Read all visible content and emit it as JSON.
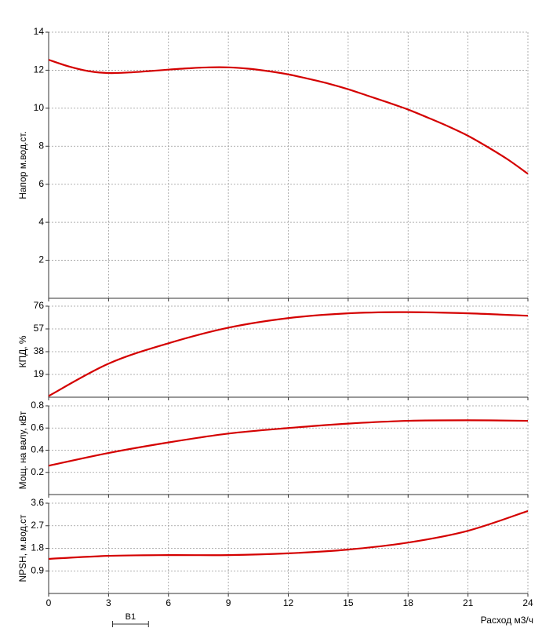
{
  "chart_data": [
    {
      "type": "line",
      "y_label": "Напор м.вод.ст.",
      "x": [
        0,
        1,
        2,
        3,
        4,
        5,
        6,
        7,
        8,
        9,
        10,
        11,
        12,
        13,
        14,
        15,
        16,
        17,
        18,
        19,
        20,
        21,
        22,
        23,
        24
      ],
      "series": [
        {
          "color": "#d40000",
          "values": [
            12.55,
            12.2,
            11.95,
            11.85,
            11.88,
            11.95,
            12.03,
            12.1,
            12.15,
            12.15,
            12.08,
            11.95,
            11.78,
            11.55,
            11.3,
            11.0,
            10.65,
            10.3,
            9.93,
            9.5,
            9.05,
            8.55,
            7.95,
            7.3,
            6.55
          ]
        }
      ],
      "xlim": [
        0,
        24
      ],
      "xticks": [
        0,
        3,
        6,
        9,
        12,
        15,
        18,
        21,
        24
      ],
      "ylim": [
        0,
        14
      ],
      "yticks": [
        2,
        4,
        6,
        8,
        10,
        12,
        14
      ],
      "grid": true
    },
    {
      "type": "line",
      "y_label": "КПД, %",
      "x": [
        0,
        3,
        6,
        9,
        12,
        15,
        18,
        21,
        24
      ],
      "series": [
        {
          "color": "#d40000",
          "values": [
            1,
            28,
            45,
            58,
            66,
            70,
            71,
            70,
            68
          ]
        }
      ],
      "xlim": [
        0,
        24
      ],
      "xticks": [
        0,
        3,
        6,
        9,
        12,
        15,
        18,
        21,
        24
      ],
      "ylim": [
        0,
        76
      ],
      "yticks": [
        19,
        38,
        57,
        76
      ],
      "grid": true
    },
    {
      "type": "line",
      "y_label": "Мощ. на валу, кВт",
      "x": [
        0,
        3,
        6,
        9,
        12,
        15,
        18,
        21,
        24
      ],
      "series": [
        {
          "color": "#d40000",
          "values": [
            0.26,
            0.375,
            0.47,
            0.55,
            0.6,
            0.64,
            0.665,
            0.67,
            0.665
          ]
        }
      ],
      "xlim": [
        0,
        24
      ],
      "xticks": [
        0,
        3,
        6,
        9,
        12,
        15,
        18,
        21,
        24
      ],
      "ylim": [
        0,
        0.8
      ],
      "yticks": [
        0.2,
        0.4,
        0.6,
        0.8
      ],
      "grid": true
    },
    {
      "type": "line",
      "y_label": "NPSH, м.вод.ст",
      "x_label": "Расход м3/ч",
      "x": [
        0,
        3,
        6,
        9,
        12,
        15,
        18,
        21,
        24
      ],
      "series": [
        {
          "color": "#d40000",
          "values": [
            1.38,
            1.5,
            1.53,
            1.53,
            1.6,
            1.75,
            2.03,
            2.5,
            3.29
          ]
        }
      ],
      "xlim": [
        0,
        24
      ],
      "xticks": [
        0,
        3,
        6,
        9,
        12,
        15,
        18,
        21,
        24
      ],
      "ylim": [
        0,
        3.6
      ],
      "yticks": [
        0.9,
        1.8,
        2.7,
        3.6
      ],
      "grid": true,
      "annotation": {
        "text": "B1",
        "x": [
          3.2,
          5
        ]
      }
    }
  ]
}
